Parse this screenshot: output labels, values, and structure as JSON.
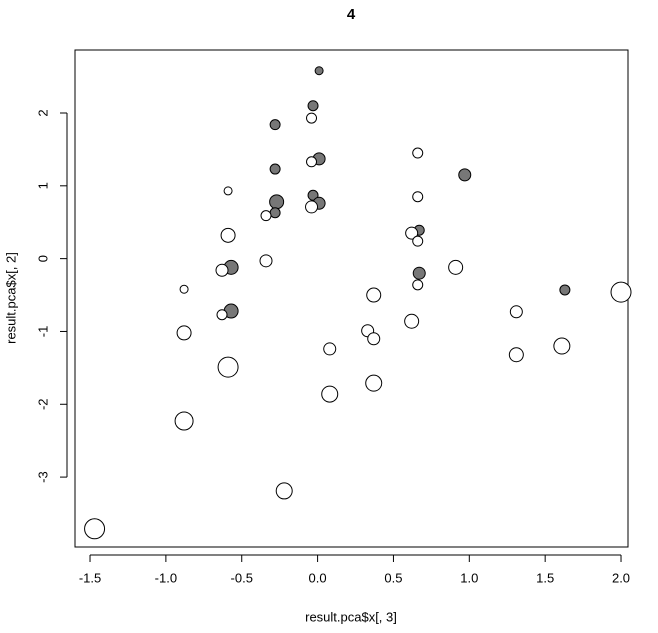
{
  "chart_data": {
    "type": "scatter",
    "title": "4",
    "x_label": "result.pca$x[, 3]",
    "y_label": "result.pca$x[, 2]",
    "xlim": [
      -1.599,
      2.046
    ],
    "ylim": [
      -3.96,
      2.865
    ],
    "xticks": [
      -1.5,
      {
        "value": -1,
        "label": "-1.0"
      },
      -0.5,
      {
        "value": 0,
        "label": "0.0"
      },
      0.5,
      {
        "value": 1,
        "label": "1.0"
      },
      1.5,
      {
        "value": 2,
        "label": "2.0"
      }
    ],
    "yticks": [
      -3,
      -2,
      -1,
      0,
      1,
      2
    ],
    "series": [
      {
        "color": "#777777",
        "x": [
          0.01,
          -0.03,
          -0.28,
          0.01,
          -0.28,
          0.97,
          -0.03,
          -0.27,
          0.01,
          -0.28,
          0.67,
          -0.57,
          0.67,
          1.63,
          -0.57
        ],
        "y": [
          2.58,
          2.1,
          1.84,
          1.37,
          1.23,
          1.15,
          0.87,
          0.78,
          0.76,
          0.63,
          0.39,
          -0.12,
          -0.2,
          -0.43,
          -0.72
        ],
        "sizes": [
          4,
          5,
          5,
          6,
          5,
          6,
          5,
          7,
          6,
          5,
          5,
          7,
          6,
          5,
          7
        ]
      },
      {
        "color": "#ffffff",
        "x": [
          -0.04,
          0.66,
          -0.04,
          -0.59,
          0.66,
          -0.04,
          -0.34,
          -0.59,
          0.62,
          0.66,
          -0.34,
          -0.63,
          0.91,
          -0.88,
          0.66,
          0.37,
          -0.63,
          1.31,
          2.0,
          0.62,
          0.33,
          -0.88,
          0.37,
          0.08,
          1.61,
          1.31,
          -0.59,
          0.37,
          0.08,
          -0.88,
          -0.22,
          -1.47
        ],
        "y": [
          1.93,
          1.45,
          1.33,
          0.93,
          0.85,
          0.71,
          0.59,
          0.32,
          0.35,
          0.24,
          -0.03,
          -0.16,
          -0.12,
          -0.42,
          -0.36,
          -0.5,
          -0.77,
          -0.73,
          -0.46,
          -0.86,
          -0.99,
          -1.02,
          -1.1,
          -1.24,
          -1.2,
          -1.32,
          -1.49,
          -1.71,
          -1.86,
          -2.23,
          -3.19,
          -3.71
        ],
        "sizes": [
          5,
          5,
          5,
          4,
          5,
          6,
          5,
          7,
          6,
          5,
          6,
          6,
          7,
          4,
          5,
          7,
          5,
          6,
          10,
          7,
          6,
          7,
          6,
          6,
          8,
          7,
          10,
          8,
          8,
          9,
          8,
          10
        ]
      }
    ]
  }
}
